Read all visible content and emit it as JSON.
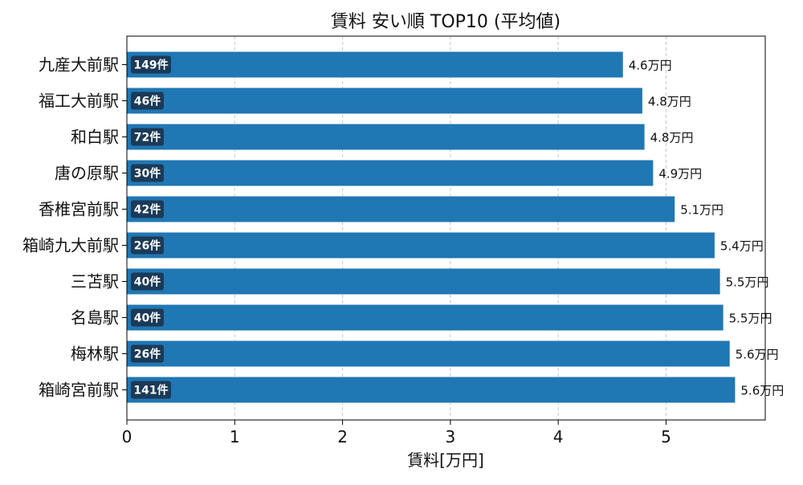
{
  "chart_data": {
    "type": "bar",
    "orientation": "horizontal",
    "title": "賃料 安い順 TOP10 (平均値)",
    "xlabel": "賃料[万円]",
    "ylabel": "",
    "xlim": [
      0,
      5.92
    ],
    "xticks": [
      0,
      1,
      2,
      3,
      4,
      5
    ],
    "grid": "x-dashed",
    "bar_color": "#1f77b4",
    "badge_color": "#1b3a57",
    "categories": [
      "九産大前駅",
      "福工大前駅",
      "和白駅",
      "唐の原駅",
      "香椎宮前駅",
      "箱崎九大前駅",
      "三苫駅",
      "名島駅",
      "梅林駅",
      "箱崎宮前駅"
    ],
    "values": [
      4.6,
      4.78,
      4.8,
      4.88,
      5.08,
      5.45,
      5.5,
      5.53,
      5.59,
      5.64
    ],
    "value_labels": [
      "4.6万円",
      "4.8万円",
      "4.8万円",
      "4.9万円",
      "5.1万円",
      "5.4万円",
      "5.5万円",
      "5.5万円",
      "5.6万円",
      "5.6万円"
    ],
    "count_labels": [
      "149件",
      "46件",
      "72件",
      "30件",
      "42件",
      "26件",
      "40件",
      "40件",
      "26件",
      "141件"
    ]
  }
}
